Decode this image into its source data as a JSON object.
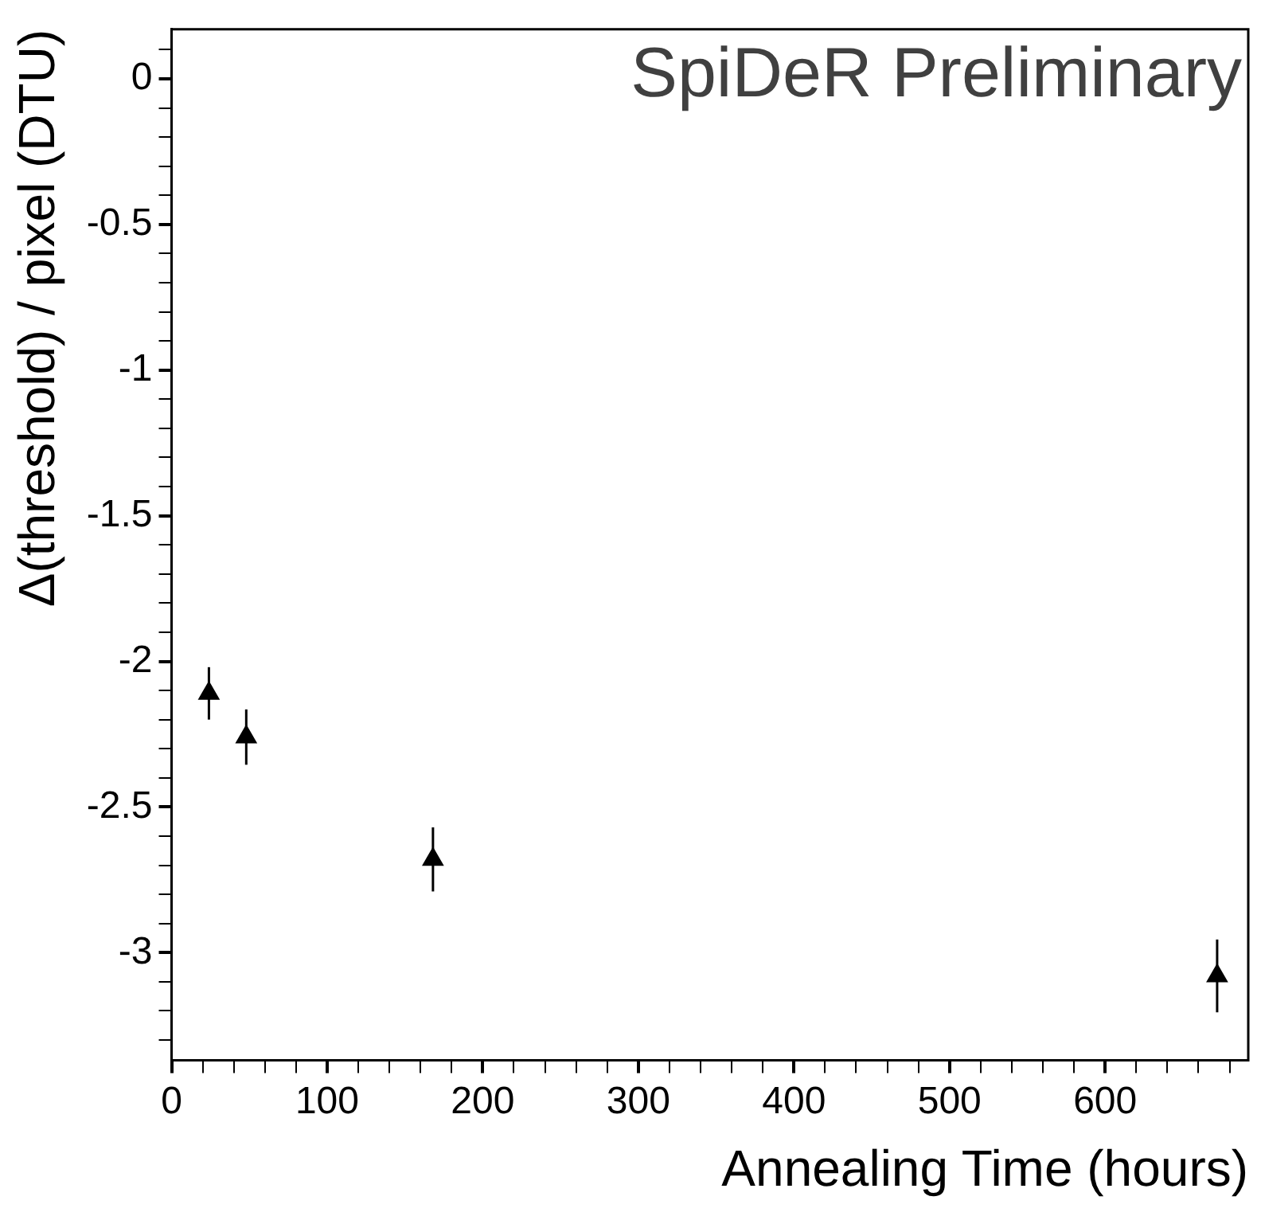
{
  "chart_data": {
    "type": "scatter",
    "xlabel": "Annealing Time (hours)",
    "ylabel": "Δ(threshold) / pixel (DTU)",
    "x": [
      24,
      48,
      168,
      672
    ],
    "series": [
      {
        "color": "#000000",
        "values": [
          -2.11,
          -2.26,
          -2.68,
          -3.08
        ],
        "errors": [
          0.09,
          0.095,
          0.11,
          0.125
        ]
      }
    ],
    "marker": "triangle",
    "xlim": [
      0,
      692
    ],
    "ylim": [
      -3.37,
      0.17
    ],
    "xticks": [
      0,
      {
        "value": 20,
        "label": null
      },
      {
        "value": 40,
        "label": null
      },
      {
        "value": 60,
        "label": null
      },
      {
        "value": 80,
        "label": null
      },
      100,
      {
        "value": 120,
        "label": null
      },
      {
        "value": 140,
        "label": null
      },
      {
        "value": 160,
        "label": null
      },
      {
        "value": 180,
        "label": null
      },
      200,
      {
        "value": 220,
        "label": null
      },
      {
        "value": 240,
        "label": null
      },
      {
        "value": 260,
        "label": null
      },
      {
        "value": 280,
        "label": null
      },
      300,
      {
        "value": 320,
        "label": null
      },
      {
        "value": 340,
        "label": null
      },
      {
        "value": 360,
        "label": null
      },
      {
        "value": 380,
        "label": null
      },
      400,
      {
        "value": 420,
        "label": null
      },
      {
        "value": 440,
        "label": null
      },
      {
        "value": 460,
        "label": null
      },
      {
        "value": 480,
        "label": null
      },
      500,
      {
        "value": 520,
        "label": null
      },
      {
        "value": 540,
        "label": null
      },
      {
        "value": 560,
        "label": null
      },
      {
        "value": 580,
        "label": null
      },
      600,
      {
        "value": 620,
        "label": null
      },
      {
        "value": 640,
        "label": null
      },
      {
        "value": 660,
        "label": null
      },
      {
        "value": 680,
        "label": null
      }
    ],
    "yticks": [
      {
        "value": 0.1,
        "label": null
      },
      0,
      {
        "value": -0.1,
        "label": null
      },
      {
        "value": -0.2,
        "label": null
      },
      {
        "value": -0.3,
        "label": null
      },
      {
        "value": -0.4,
        "label": null
      },
      -0.5,
      {
        "value": -0.6,
        "label": null
      },
      {
        "value": -0.7,
        "label": null
      },
      {
        "value": -0.8,
        "label": null
      },
      {
        "value": -0.9,
        "label": null
      },
      -1,
      {
        "value": -1.1,
        "label": null
      },
      {
        "value": -1.2,
        "label": null
      },
      {
        "value": -1.3,
        "label": null
      },
      {
        "value": -1.4,
        "label": null
      },
      -1.5,
      {
        "value": -1.6,
        "label": null
      },
      {
        "value": -1.7,
        "label": null
      },
      {
        "value": -1.8,
        "label": null
      },
      {
        "value": -1.9,
        "label": null
      },
      -2,
      {
        "value": -2.1,
        "label": null
      },
      {
        "value": -2.2,
        "label": null
      },
      {
        "value": -2.3,
        "label": null
      },
      {
        "value": -2.4,
        "label": null
      },
      -2.5,
      {
        "value": -2.6,
        "label": null
      },
      {
        "value": -2.7,
        "label": null
      },
      {
        "value": -2.8,
        "label": null
      },
      {
        "value": -2.9,
        "label": null
      },
      -3,
      {
        "value": -3.1,
        "label": null
      },
      {
        "value": -3.2,
        "label": null
      },
      {
        "value": -3.3,
        "label": null
      }
    ],
    "grid": false,
    "legend": false,
    "annotations": [
      "SpiDeR Preliminary"
    ]
  }
}
